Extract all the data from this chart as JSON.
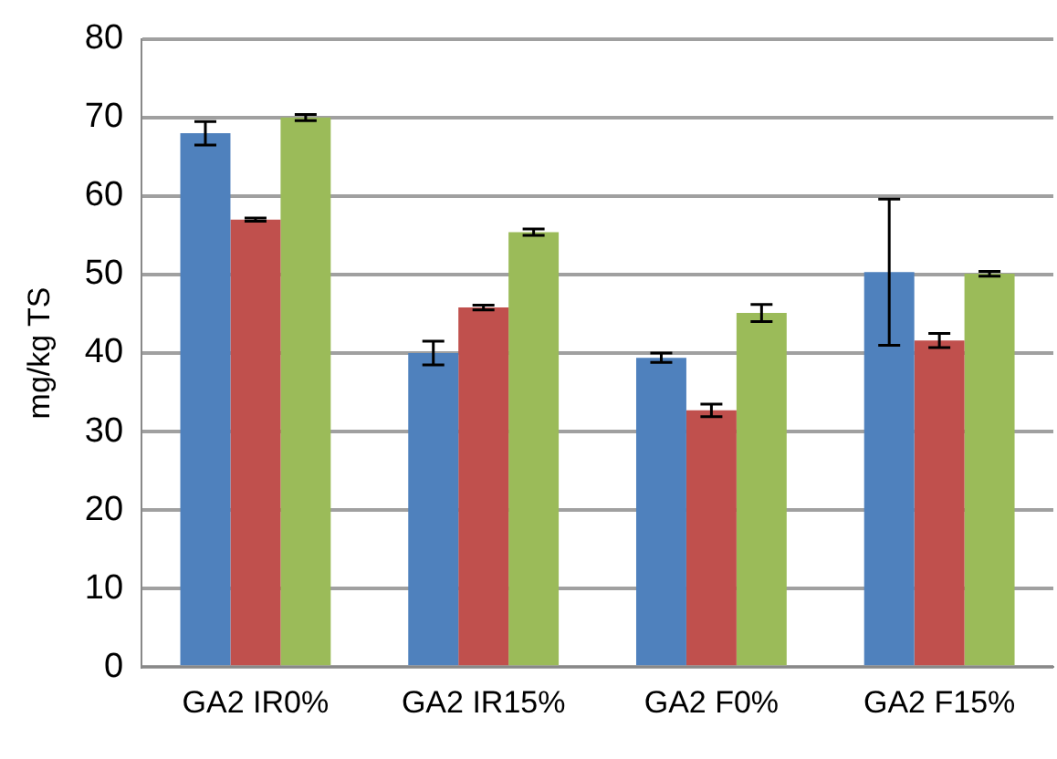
{
  "chart_data": {
    "type": "bar",
    "ylabel": "mg/kg TS",
    "categories": [
      "GA2 IR0%",
      "GA2 IR15%",
      "GA2 F0%",
      "GA2 F15%"
    ],
    "series": [
      {
        "color": "#4f81bd",
        "values": [
          68,
          40,
          39.4,
          50.3
        ],
        "errors": [
          1.5,
          1.5,
          0.6,
          9.3
        ]
      },
      {
        "color": "#c0504d",
        "values": [
          57,
          45.8,
          32.7,
          41.6
        ],
        "errors": [
          0.2,
          0.3,
          0.8,
          0.9
        ]
      },
      {
        "color": "#9bbb59",
        "values": [
          70,
          55.4,
          45.1,
          50.1
        ],
        "errors": [
          0.4,
          0.4,
          1.1,
          0.3
        ]
      }
    ],
    "ylim": [
      0,
      80
    ],
    "yticks": [
      0,
      10,
      20,
      30,
      40,
      50,
      60,
      70,
      80
    ],
    "grid": "y",
    "legend": false
  }
}
